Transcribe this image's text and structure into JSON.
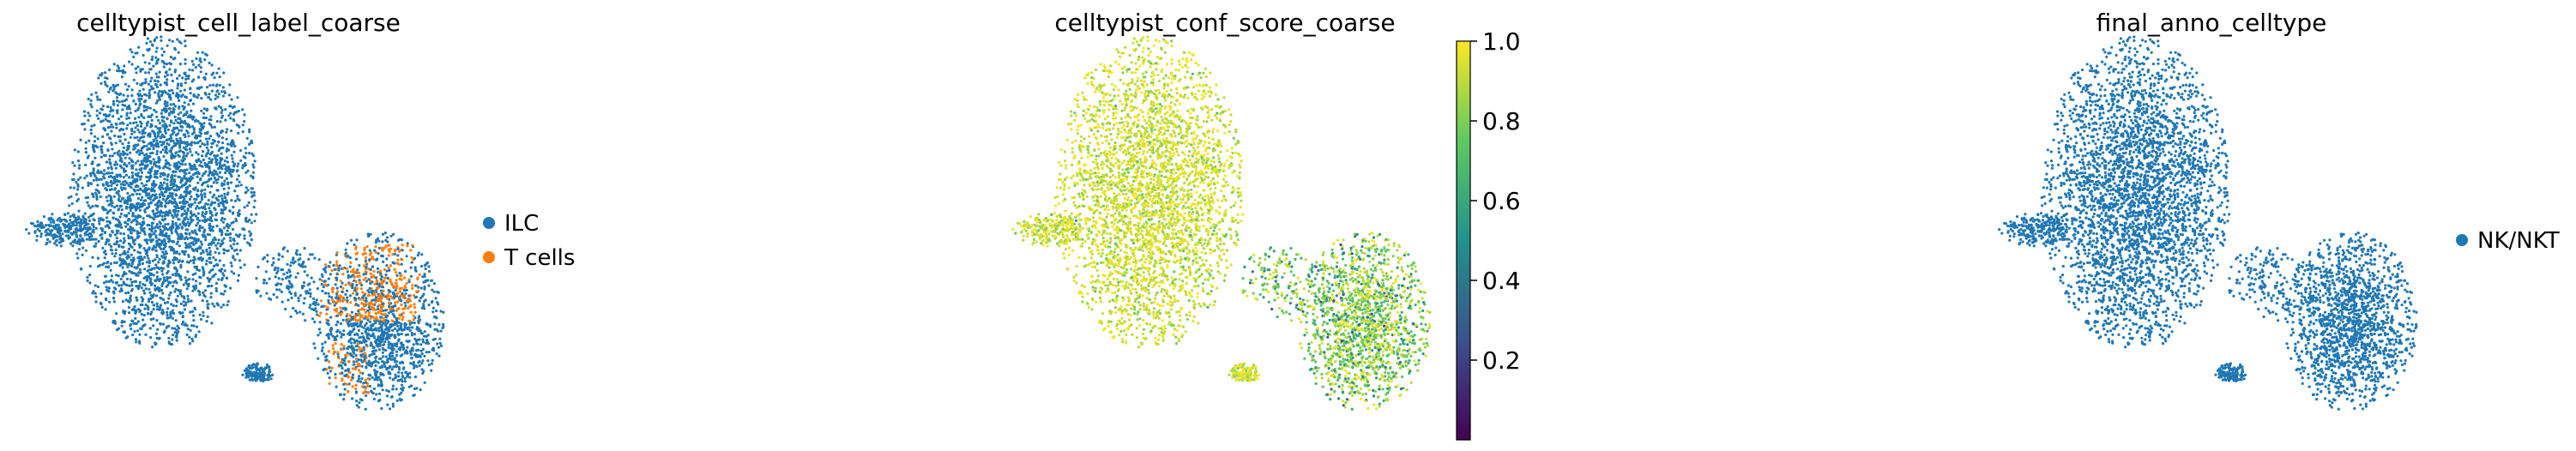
{
  "colors": {
    "blue": "#1f77b4",
    "orange": "#ff7f0e",
    "viridis": [
      "#440154",
      "#3b528b",
      "#21918c",
      "#5ec962",
      "#fde725"
    ]
  },
  "chart_data": [
    {
      "type": "scatter",
      "title": "celltypist_cell_label_coarse",
      "legend_position": "right",
      "grid": false,
      "legend": [
        {
          "label": "ILC",
          "color": "#1f77b4"
        },
        {
          "label": "T cells",
          "color": "#ff7f0e"
        }
      ]
    },
    {
      "type": "scatter",
      "title": "celltypist_conf_score_coarse",
      "grid": false,
      "colorbar": {
        "cmap": "viridis",
        "range": [
          0.0,
          1.0
        ],
        "ticks": [
          0.2,
          0.4,
          0.6,
          0.8,
          1.0
        ],
        "tick_labels": [
          "0.2",
          "0.4",
          "0.6",
          "0.8",
          "1.0"
        ]
      }
    },
    {
      "type": "scatter",
      "title": "final_anno_celltype",
      "legend_position": "right",
      "grid": false,
      "legend": [
        {
          "label": "NK/NKT",
          "color": "#1f77b4"
        }
      ]
    }
  ]
}
